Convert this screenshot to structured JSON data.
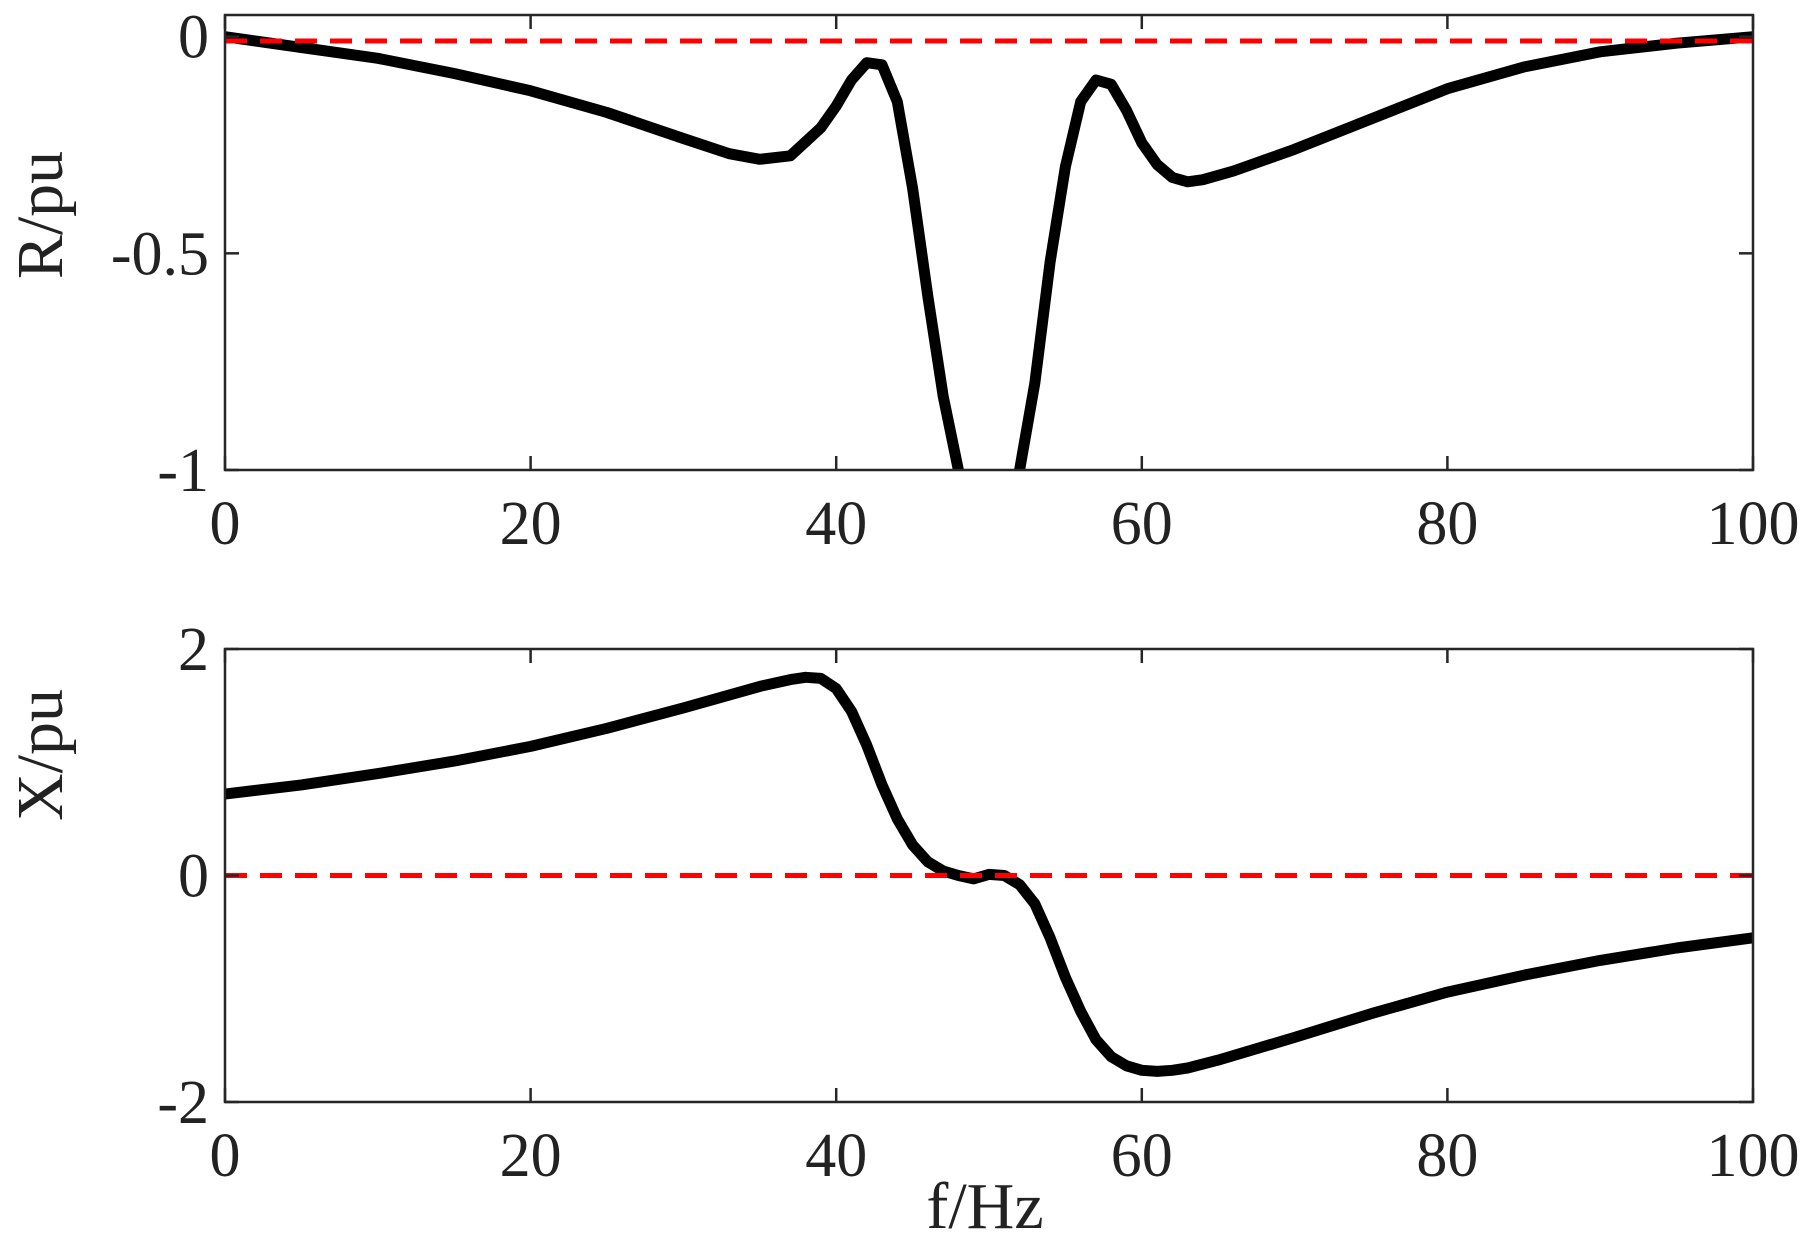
{
  "chart_data": [
    {
      "type": "line",
      "xlabel": "",
      "ylabel": "R/pu",
      "xlim": [
        0,
        100
      ],
      "ylim": [
        -1,
        0.05
      ],
      "x_ticks": [
        0,
        20,
        40,
        60,
        80,
        100
      ],
      "x_tick_labels": [
        "0",
        "20",
        "40",
        "60",
        "80",
        "100"
      ],
      "y_ticks": [
        0,
        -0.5,
        -1
      ],
      "y_tick_labels": [
        "0",
        "-0.5",
        "-1"
      ],
      "grid": false,
      "series": [
        {
          "color": "#000000",
          "style": "solid",
          "x": [
            0,
            5,
            10,
            15,
            20,
            25,
            30,
            33,
            35,
            37,
            39,
            40,
            41,
            42,
            43,
            44,
            45,
            46,
            47,
            48
          ],
          "y": [
            0,
            -0.025,
            -0.05,
            -0.085,
            -0.125,
            -0.175,
            -0.235,
            -0.27,
            -0.283,
            -0.275,
            -0.21,
            -0.16,
            -0.1,
            -0.06,
            -0.065,
            -0.15,
            -0.35,
            -0.6,
            -0.83,
            -1.0
          ]
        },
        {
          "color": "#000000",
          "style": "solid",
          "x": [
            52,
            53,
            54,
            55,
            56,
            57,
            58,
            59,
            60,
            61,
            62,
            63,
            64,
            66,
            70,
            75,
            80,
            85,
            90,
            95,
            100
          ],
          "y": [
            -1.0,
            -0.8,
            -0.52,
            -0.3,
            -0.15,
            -0.1,
            -0.11,
            -0.17,
            -0.245,
            -0.295,
            -0.325,
            -0.335,
            -0.33,
            -0.31,
            -0.26,
            -0.19,
            -0.12,
            -0.07,
            -0.035,
            -0.015,
            0
          ]
        },
        {
          "color": "#ff0000",
          "style": "dashed",
          "x": [
            0,
            100
          ],
          "y": [
            -0.01,
            -0.01
          ]
        }
      ]
    },
    {
      "type": "line",
      "xlabel": "f/Hz",
      "ylabel": "X/pu",
      "xlim": [
        0,
        100
      ],
      "ylim": [
        -2,
        2
      ],
      "x_ticks": [
        0,
        20,
        40,
        60,
        80,
        100
      ],
      "x_tick_labels": [
        "0",
        "20",
        "40",
        "60",
        "80",
        "100"
      ],
      "y_ticks": [
        2,
        0,
        -2
      ],
      "y_tick_labels": [
        "2",
        "0",
        "-2"
      ],
      "grid": false,
      "series": [
        {
          "color": "#000000",
          "style": "solid",
          "x": [
            0,
            5,
            10,
            15,
            20,
            25,
            30,
            35,
            37,
            38,
            39,
            40,
            41,
            42,
            43,
            44,
            45,
            46,
            47,
            48,
            49,
            50,
            51,
            52,
            53,
            54,
            55,
            56,
            57,
            58,
            59,
            60,
            61,
            62,
            63,
            65,
            70,
            75,
            80,
            85,
            90,
            95,
            100
          ],
          "y": [
            0.72,
            0.8,
            0.9,
            1.01,
            1.14,
            1.3,
            1.48,
            1.67,
            1.73,
            1.75,
            1.74,
            1.65,
            1.45,
            1.15,
            0.8,
            0.5,
            0.27,
            0.12,
            0.04,
            0.0,
            -0.03,
            0.01,
            0.0,
            -0.08,
            -0.25,
            -0.55,
            -0.9,
            -1.2,
            -1.45,
            -1.6,
            -1.68,
            -1.72,
            -1.73,
            -1.72,
            -1.7,
            -1.63,
            -1.43,
            -1.22,
            -1.03,
            -0.88,
            -0.75,
            -0.64,
            -0.55
          ]
        },
        {
          "color": "#ff0000",
          "style": "dashed",
          "x": [
            0,
            100
          ],
          "y": [
            0,
            0
          ]
        }
      ]
    }
  ]
}
